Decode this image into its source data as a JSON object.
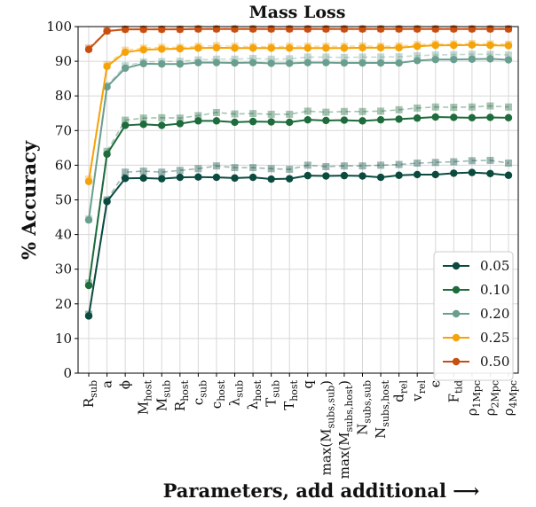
{
  "chart_data": {
    "type": "line",
    "title": "Mass Loss",
    "xlabel": "Parameters, add additional ⟶",
    "ylabel": "% Accuracy",
    "ylim": [
      0,
      100
    ],
    "yticks": [
      0,
      10,
      20,
      30,
      40,
      50,
      60,
      70,
      80,
      90,
      100
    ],
    "grid": true,
    "legend": {
      "location": "lower right"
    },
    "categories": [
      {
        "base": "R",
        "sub": "sub"
      },
      {
        "base": "a",
        "sub": ""
      },
      {
        "base": "ϕ",
        "sub": ""
      },
      {
        "base": "M",
        "sub": "host"
      },
      {
        "base": "M",
        "sub": "sub"
      },
      {
        "base": "R",
        "sub": "host"
      },
      {
        "base": "c",
        "sub": "sub"
      },
      {
        "base": "c",
        "sub": "host"
      },
      {
        "base": "λ",
        "sub": "sub"
      },
      {
        "base": "λ",
        "sub": "host"
      },
      {
        "base": "T",
        "sub": "sub"
      },
      {
        "base": "T",
        "sub": "host"
      },
      {
        "base": "q",
        "sub": ""
      },
      {
        "base": "max(M",
        "sub": "subs,sub",
        "tail": ")"
      },
      {
        "base": "max(M",
        "sub": "subs,host",
        "tail": ")"
      },
      {
        "base": "N",
        "sub": "subs,sub"
      },
      {
        "base": "N",
        "sub": "subs,host"
      },
      {
        "base": "d",
        "sub": "rel"
      },
      {
        "base": "v",
        "sub": "rel"
      },
      {
        "base": "ϵ",
        "sub": ""
      },
      {
        "base": "F",
        "sub": "tid"
      },
      {
        "base": "ρ",
        "sub": "1Mpc"
      },
      {
        "base": "ρ",
        "sub": "2Mpc"
      },
      {
        "base": "ρ",
        "sub": "4Mpc"
      }
    ],
    "series": [
      {
        "name": "0.05",
        "color": "#0b4a3f",
        "values": [
          16.5,
          49.5,
          56.2,
          56.3,
          56.1,
          56.5,
          56.6,
          56.5,
          56.3,
          56.5,
          56.0,
          56.1,
          57.0,
          56.9,
          57.0,
          56.9,
          56.5,
          57.1,
          57.3,
          57.3,
          57.7,
          57.9,
          57.6,
          57.1
        ],
        "compare_values": [
          17.0,
          50.0,
          58.0,
          58.3,
          58.0,
          58.5,
          59.0,
          59.8,
          59.3,
          59.3,
          59.0,
          58.8,
          60.0,
          59.6,
          59.8,
          59.8,
          60.0,
          60.2,
          60.6,
          60.8,
          61.0,
          61.3,
          61.4,
          60.6
        ]
      },
      {
        "name": "0.10",
        "color": "#1e6b3c",
        "values": [
          25.3,
          63.2,
          71.5,
          71.8,
          71.5,
          72.0,
          72.8,
          72.8,
          72.4,
          72.6,
          72.5,
          72.4,
          73.1,
          72.9,
          73.0,
          72.8,
          73.1,
          73.3,
          73.6,
          73.9,
          73.8,
          73.7,
          73.8,
          73.7
        ],
        "compare_values": [
          26.0,
          64.0,
          73.0,
          73.6,
          73.7,
          73.6,
          74.3,
          75.2,
          74.8,
          74.9,
          74.7,
          74.7,
          75.6,
          75.3,
          75.5,
          75.5,
          75.6,
          76.0,
          76.5,
          76.8,
          76.7,
          76.8,
          77.1,
          76.8
        ]
      },
      {
        "name": "0.20",
        "color": "#6a9f8f",
        "values": [
          44.2,
          82.6,
          88.0,
          89.3,
          89.2,
          89.2,
          89.6,
          89.6,
          89.5,
          89.6,
          89.4,
          89.4,
          89.6,
          89.6,
          89.5,
          89.5,
          89.5,
          89.5,
          90.2,
          90.5,
          90.5,
          90.6,
          90.7,
          90.4
        ],
        "compare_values": [
          44.5,
          83.0,
          88.7,
          89.8,
          89.9,
          90.0,
          90.4,
          90.6,
          90.6,
          90.8,
          90.6,
          90.7,
          91.2,
          91.2,
          91.1,
          91.2,
          91.2,
          91.3,
          91.6,
          91.8,
          91.9,
          92.0,
          92.0,
          91.8
        ]
      },
      {
        "name": "0.25",
        "color": "#f5a30a",
        "values": [
          55.3,
          88.5,
          92.6,
          93.3,
          93.5,
          93.6,
          93.8,
          93.9,
          93.8,
          93.8,
          93.8,
          93.8,
          93.8,
          93.8,
          93.8,
          93.9,
          93.9,
          93.9,
          94.3,
          94.6,
          94.6,
          94.7,
          94.6,
          94.5
        ],
        "compare_values": [
          56.0,
          89.0,
          93.2,
          93.8,
          94.0,
          94.0,
          94.3,
          94.5,
          94.3,
          94.2,
          94.2,
          94.3,
          94.3,
          94.3,
          94.3,
          94.4,
          94.3,
          94.4,
          94.8,
          95.0,
          95.0,
          95.1,
          95.0,
          94.9
        ]
      },
      {
        "name": "0.50",
        "color": "#c84f10",
        "values": [
          93.4,
          98.7,
          99.2,
          99.2,
          99.2,
          99.2,
          99.3,
          99.3,
          99.3,
          99.3,
          99.3,
          99.3,
          99.3,
          99.3,
          99.3,
          99.3,
          99.3,
          99.3,
          99.3,
          99.3,
          99.3,
          99.3,
          99.3,
          99.3
        ],
        "compare_values": [
          93.8,
          98.8,
          99.3,
          99.3,
          99.3,
          99.3,
          99.4,
          99.4,
          99.4,
          99.4,
          99.4,
          99.4,
          99.4,
          99.4,
          99.4,
          99.4,
          99.4,
          99.4,
          99.4,
          99.4,
          99.4,
          99.4,
          99.4,
          99.4
        ]
      }
    ]
  }
}
